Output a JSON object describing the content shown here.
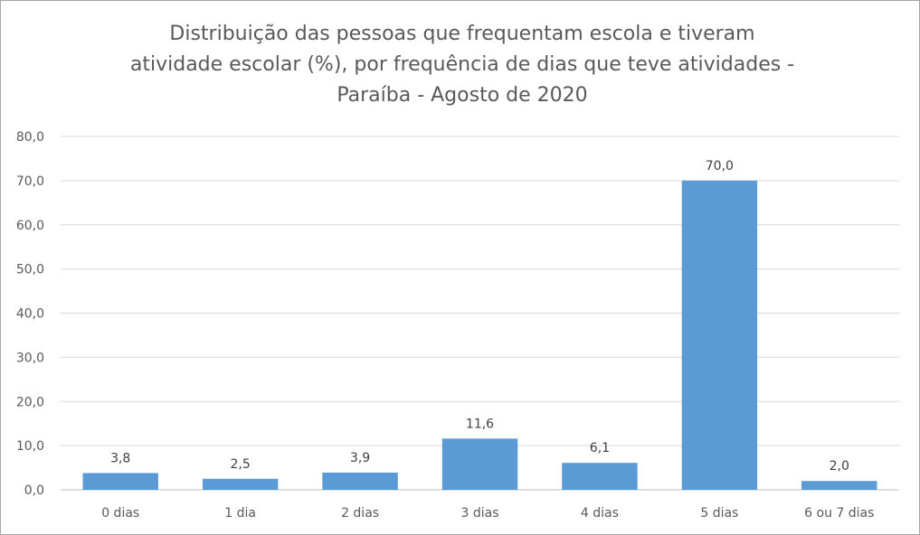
{
  "chart_data": {
    "type": "bar",
    "title_lines": [
      "Distribuição das pessoas que frequentam escola e tiveram",
      "atividade escolar (%), por frequência de dias que teve atividades -",
      "Paraíba - Agosto de 2020"
    ],
    "categories": [
      "0 dias",
      "1 dia",
      "2 dias",
      "3 dias",
      "4 dias",
      "5 dias",
      "6 ou 7 dias"
    ],
    "values": [
      3.8,
      2.5,
      3.9,
      11.6,
      6.1,
      70.0,
      2.0
    ],
    "data_labels": [
      "3,8",
      "2,5",
      "3,9",
      "11,6",
      "6,1",
      "70,0",
      "2,0"
    ],
    "y_ticks": [
      0,
      10,
      20,
      30,
      40,
      50,
      60,
      70,
      80
    ],
    "y_tick_labels": [
      "0,0",
      "10,0",
      "20,0",
      "30,0",
      "40,0",
      "50,0",
      "60,0",
      "70,0",
      "80,0"
    ],
    "ylim": [
      0,
      80
    ],
    "grid": true,
    "legend": "none",
    "bar_color": "#5b9bd5",
    "grid_color": "#d9d9d9"
  }
}
